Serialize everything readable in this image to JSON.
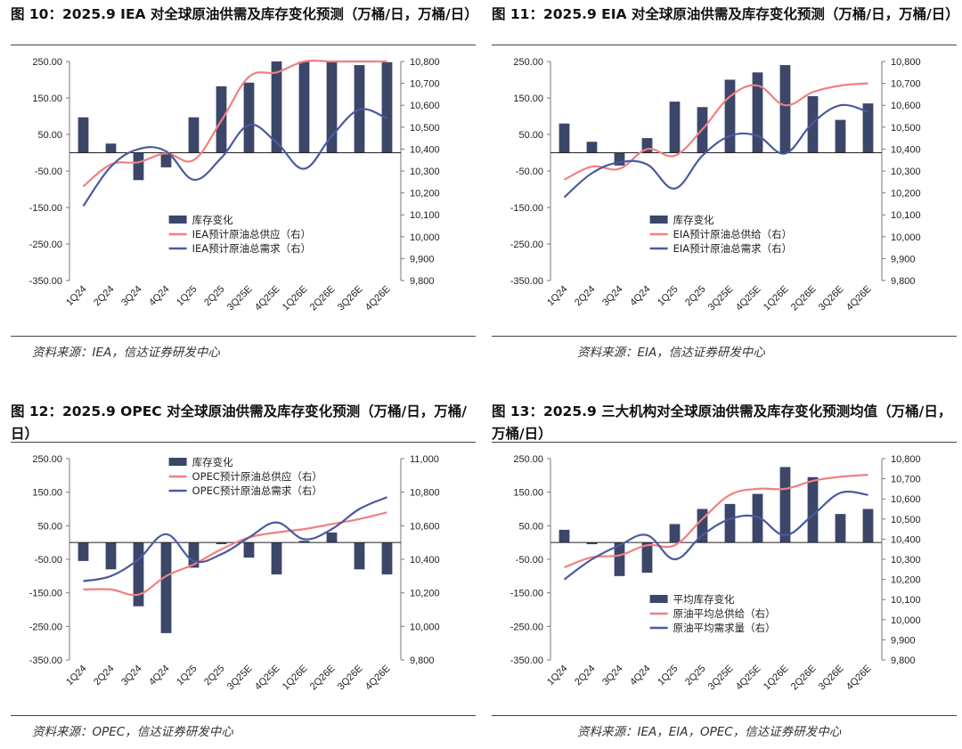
{
  "chart_data": [
    {
      "type": "bar-line",
      "title": "图 10：2025.9 IEA 对全球原油供需及库存变化预测（万桶/日，万桶/日）",
      "source": "资料来源：IEA，信达证券研发中心",
      "categories": [
        "1Q24",
        "2Q24",
        "3Q24",
        "4Q24",
        "1Q25",
        "2Q25",
        "3Q25E",
        "4Q25E",
        "1Q26E",
        "2Q26E",
        "3Q26E",
        "4Q26E"
      ],
      "left_axis": {
        "ticks": [
          "250.00",
          "150.00",
          "50.00",
          "-50.00",
          "-150.00",
          "-250.00",
          "-350.00"
        ],
        "range": [
          -350,
          250
        ]
      },
      "right_axis": {
        "ticks": [
          "10,800",
          "10,700",
          "10,600",
          "10,500",
          "10,400",
          "10,300",
          "10,200",
          "10,100",
          "10,000",
          "9,900",
          "9,800"
        ],
        "range": [
          9800,
          10800
        ]
      },
      "series": [
        {
          "name": "库存变化",
          "kind": "bar",
          "axis": "left",
          "values": [
            97,
            25,
            -75,
            -40,
            97,
            182,
            192,
            250,
            250,
            250,
            240,
            248
          ]
        },
        {
          "name": "IEA预计原油总供应（右）",
          "kind": "line",
          "axis": "right",
          "color": "#f08080",
          "values": [
            10230,
            10330,
            10340,
            10380,
            10350,
            10530,
            10730,
            10750,
            10800,
            10810,
            10810,
            10810
          ]
        },
        {
          "name": "IEA预计原油总需求（右）",
          "kind": "line",
          "axis": "right",
          "color": "#4a5a9e",
          "values": [
            10140,
            10320,
            10400,
            10390,
            10260,
            10360,
            10510,
            10430,
            10310,
            10460,
            10580,
            10540
          ]
        }
      ],
      "legend_position": "lower-center"
    },
    {
      "type": "bar-line",
      "title": "图 11：2025.9 EIA 对全球原油供需及库存变化预测（万桶/日，万桶/日）",
      "source": "资料来源：EIA，信达证券研发中心",
      "categories": [
        "1Q24",
        "2Q24",
        "3Q24",
        "4Q24",
        "1Q25",
        "2Q25",
        "3Q25E",
        "4Q25E",
        "1Q26E",
        "2Q26E",
        "3Q26E",
        "4Q26E"
      ],
      "left_axis": {
        "ticks": [
          "250.00",
          "150.00",
          "50.00",
          "-50.00",
          "-150.00",
          "-250.00",
          "-350.00"
        ],
        "range": [
          -350,
          250
        ]
      },
      "right_axis": {
        "ticks": [
          "10,800",
          "10,700",
          "10,600",
          "10,500",
          "10,400",
          "10,300",
          "10,200",
          "10,100",
          "10,000",
          "9,900",
          "9,800"
        ],
        "range": [
          9800,
          10800
        ]
      },
      "series": [
        {
          "name": "库存变化",
          "kind": "bar",
          "axis": "left",
          "values": [
            80,
            30,
            -35,
            40,
            140,
            125,
            200,
            220,
            240,
            155,
            90,
            135
          ]
        },
        {
          "name": "EIA预计原油总供给（右）",
          "kind": "line",
          "axis": "right",
          "color": "#f08080",
          "values": [
            10260,
            10320,
            10310,
            10400,
            10370,
            10490,
            10640,
            10690,
            10600,
            10660,
            10690,
            10700
          ]
        },
        {
          "name": "EIA预计原油总需求（右）",
          "kind": "line",
          "axis": "right",
          "color": "#4a5a9e",
          "values": [
            10180,
            10290,
            10340,
            10330,
            10220,
            10370,
            10460,
            10460,
            10380,
            10520,
            10600,
            10570
          ]
        }
      ],
      "legend_position": "lower-center"
    },
    {
      "type": "bar-line",
      "title": "图 12：2025.9 OPEC 对全球原油供需及库存变化预测（万桶/日，万桶/日）",
      "source": "资料来源：OPEC，信达证券研发中心",
      "categories": [
        "1Q24",
        "2Q24",
        "3Q24",
        "4Q24",
        "1Q25",
        "2Q25",
        "3Q25E",
        "4Q25E",
        "1Q26E",
        "2Q26E",
        "3Q26E",
        "4Q26E"
      ],
      "left_axis": {
        "ticks": [
          "250.00",
          "150.00",
          "50.00",
          "-50.00",
          "-150.00",
          "-250.00",
          "-350.00"
        ],
        "range": [
          -350,
          250
        ]
      },
      "right_axis": {
        "ticks": [
          "11,000",
          "10,800",
          "10,600",
          "10,400",
          "10,200",
          "10,000",
          "9,800"
        ],
        "range": [
          9800,
          11000
        ]
      },
      "series": [
        {
          "name": "库存变化",
          "kind": "bar",
          "axis": "left",
          "values": [
            -55,
            -80,
            -190,
            -270,
            -75,
            -5,
            -45,
            -95,
            5,
            30,
            -80,
            -95
          ]
        },
        {
          "name": "OPEC预计原油总供应（右）",
          "kind": "line",
          "axis": "right",
          "color": "#f08080",
          "values": [
            10220,
            10220,
            10190,
            10300,
            10370,
            10460,
            10530,
            10560,
            10580,
            10610,
            10640,
            10680
          ]
        },
        {
          "name": "OPEC预计原油总需求（右）",
          "kind": "line",
          "axis": "right",
          "color": "#4a5a9e",
          "values": [
            10270,
            10300,
            10400,
            10550,
            10390,
            10430,
            10530,
            10620,
            10520,
            10580,
            10700,
            10770
          ]
        }
      ],
      "legend_position": "top-center"
    },
    {
      "type": "bar-line",
      "title": "图 13：2025.9 三大机构对全球原油供需及库存变化预测均值（万桶/日，万桶/日）",
      "source": "资料来源：IEA，EIA，OPEC，信达证券研发中心",
      "categories": [
        "1Q24",
        "2Q24",
        "3Q24",
        "4Q24",
        "1Q25",
        "2Q25",
        "3Q25E",
        "4Q25E",
        "1Q26E",
        "2Q26E",
        "3Q26E",
        "4Q26E"
      ],
      "left_axis": {
        "ticks": [
          "250.00",
          "150.00",
          "50.00",
          "-50.00",
          "-150.00",
          "-250.00",
          "-350.00"
        ],
        "range": [
          -350,
          250
        ]
      },
      "right_axis": {
        "ticks": [
          "10,800",
          "10,700",
          "10,600",
          "10,500",
          "10,400",
          "10,300",
          "10,200",
          "10,100",
          "10,000",
          "9,900",
          "9,800"
        ],
        "range": [
          9800,
          10800
        ]
      },
      "series": [
        {
          "name": "平均库存变化",
          "kind": "bar",
          "axis": "left",
          "values": [
            38,
            -5,
            -100,
            -90,
            55,
            100,
            115,
            145,
            225,
            195,
            85,
            100
          ]
        },
        {
          "name": "原油平均总供给（右）",
          "kind": "line",
          "axis": "right",
          "color": "#f08080",
          "values": [
            10260,
            10310,
            10320,
            10370,
            10370,
            10500,
            10620,
            10650,
            10650,
            10690,
            10710,
            10720
          ]
        },
        {
          "name": "原油平均需求量（右）",
          "kind": "line",
          "axis": "right",
          "color": "#4a5a9e",
          "values": [
            10200,
            10300,
            10370,
            10420,
            10300,
            10420,
            10500,
            10510,
            10420,
            10520,
            10630,
            10620
          ]
        }
      ],
      "legend_position": "lower-center"
    }
  ]
}
